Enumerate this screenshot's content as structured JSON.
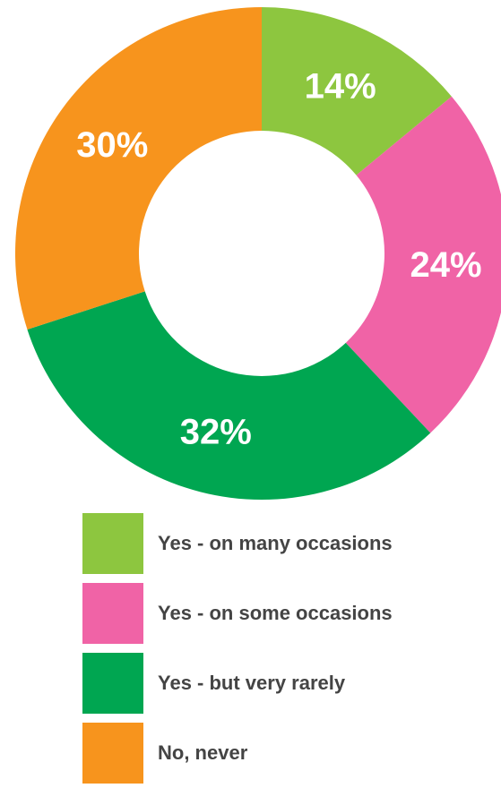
{
  "chart_data": {
    "type": "pie",
    "title": "",
    "labels": [
      "Yes - on many occasions",
      "Yes - on some occasions",
      "Yes - but very rarely",
      "No, never"
    ],
    "values": [
      14,
      24,
      32,
      30
    ],
    "value_labels": [
      "14%",
      "24%",
      "32%",
      "30%"
    ],
    "colors": [
      "#8dc63f",
      "#f063a6",
      "#00a651",
      "#f7941d"
    ],
    "donut": true,
    "start": "top",
    "direction": "clockwise",
    "legend_position": "bottom"
  }
}
